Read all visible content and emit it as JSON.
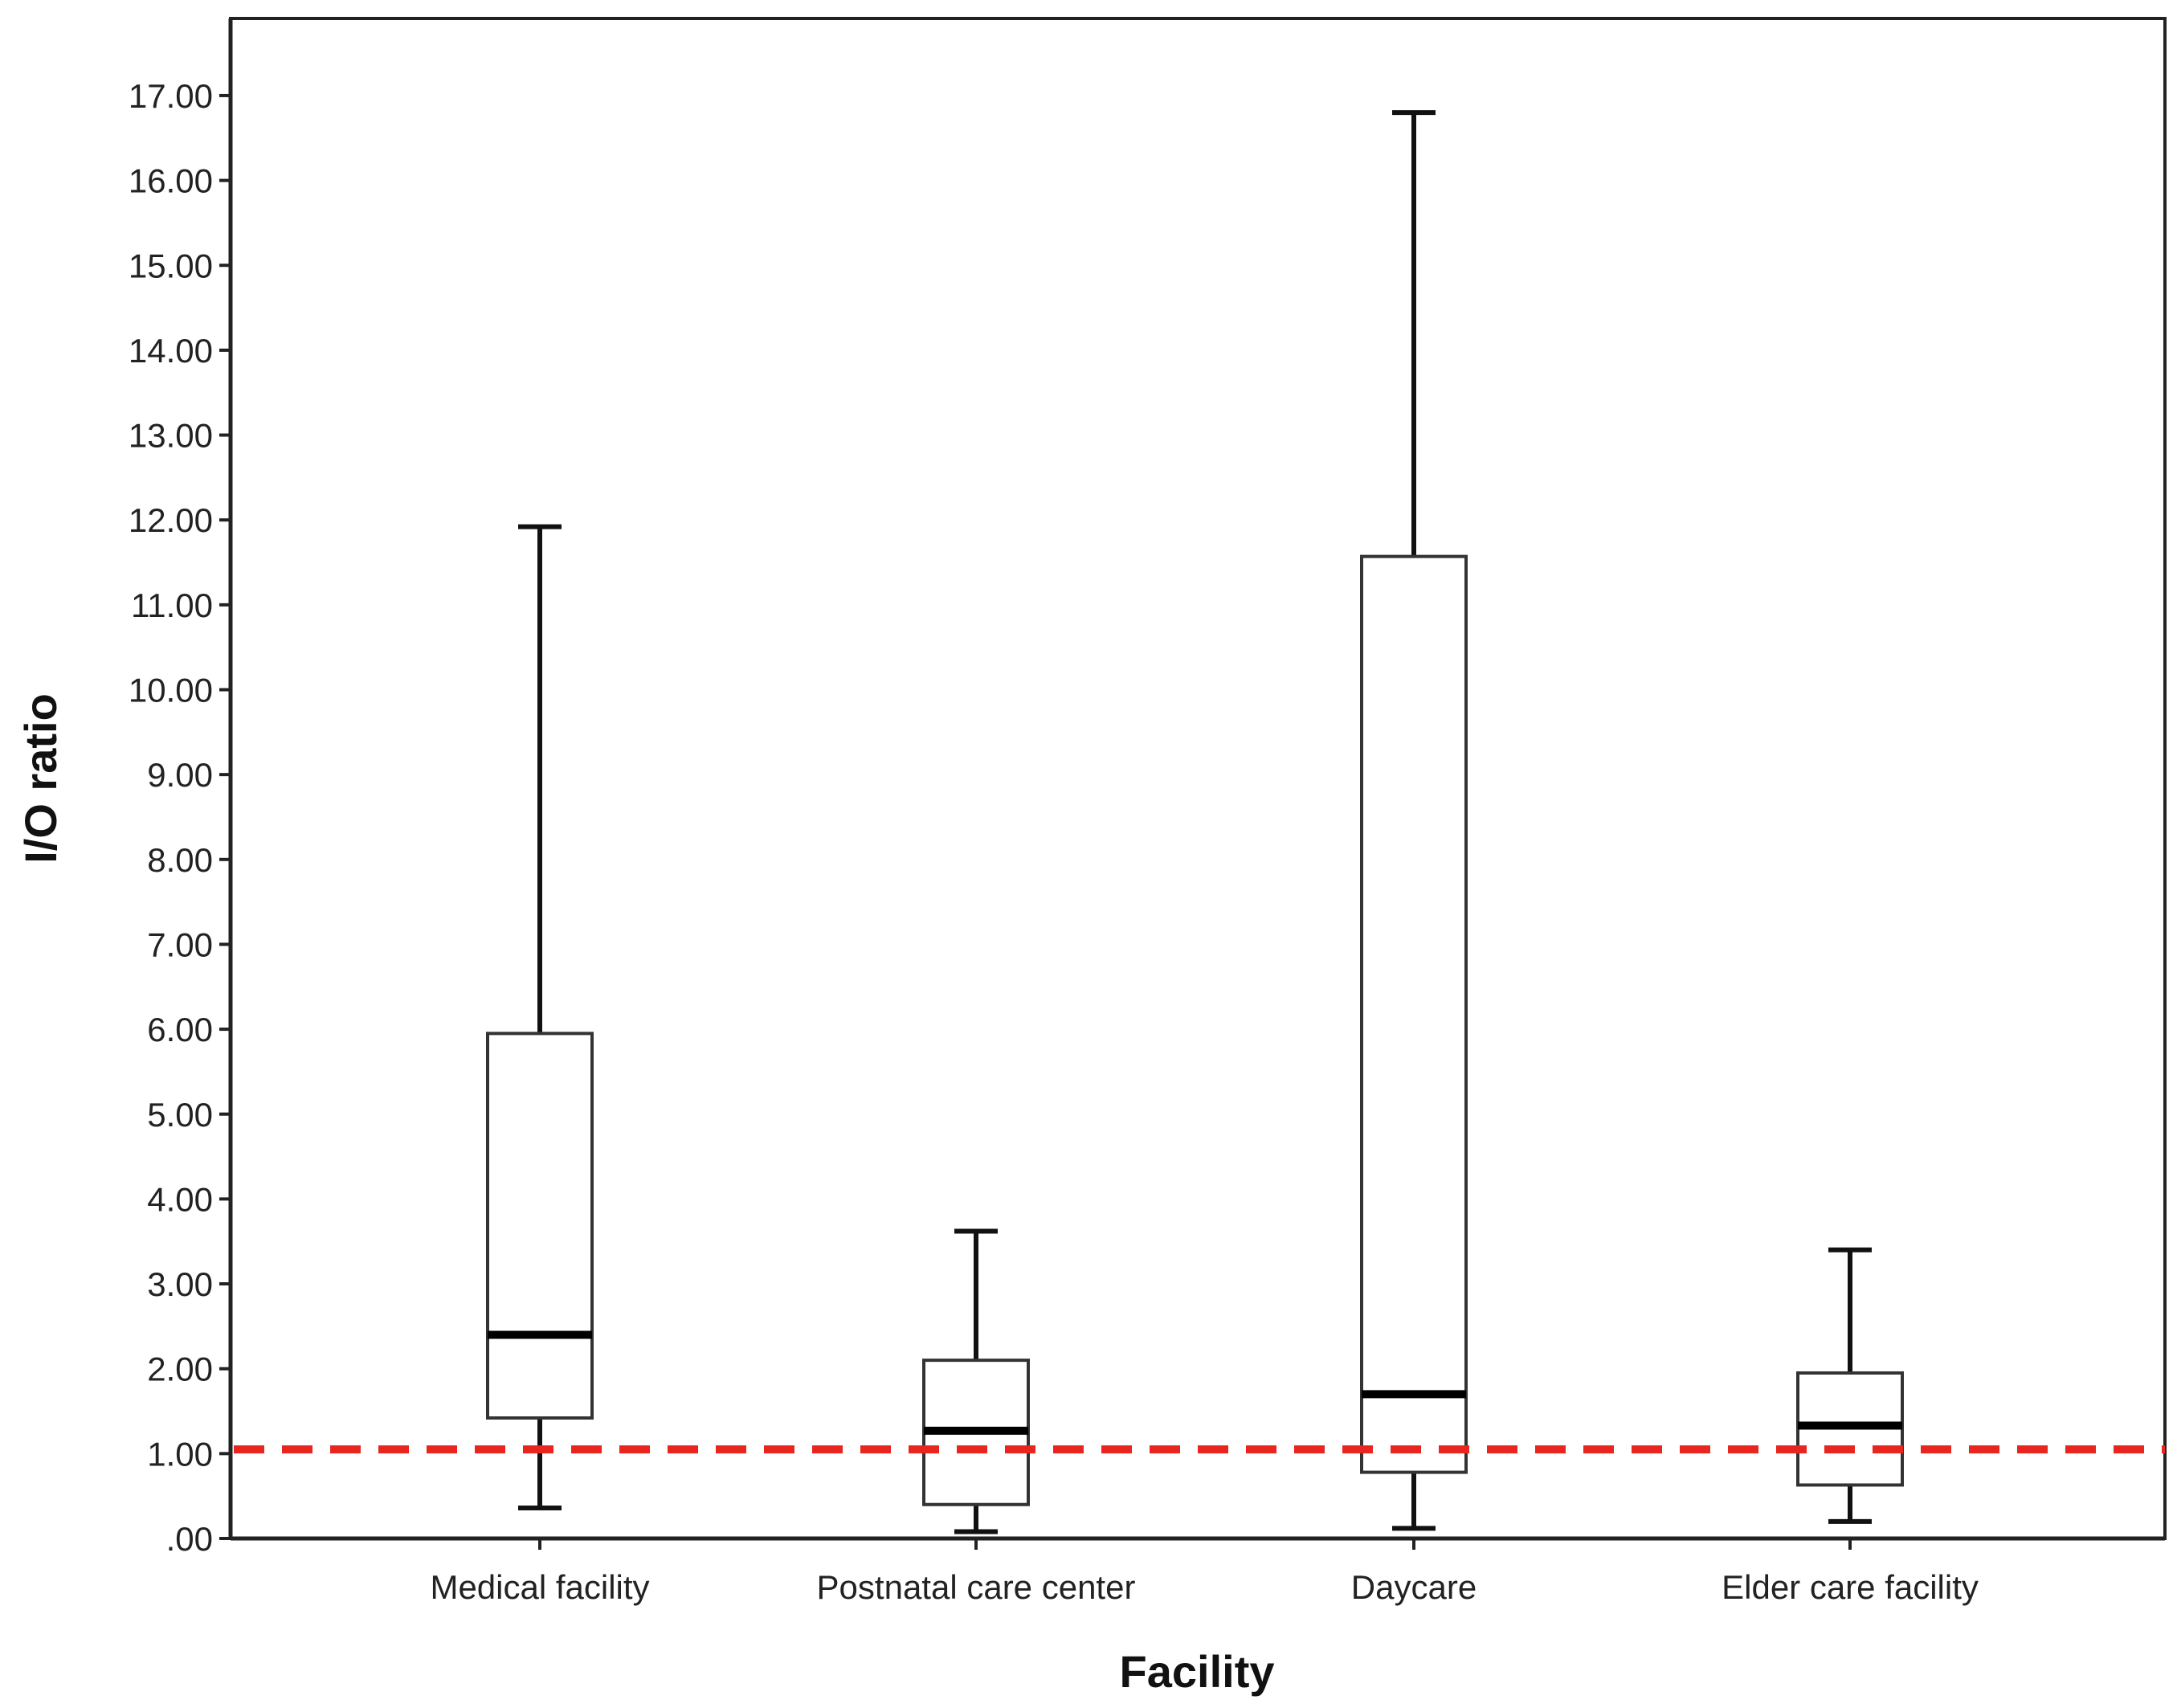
{
  "chart_data": {
    "type": "boxplot",
    "title": "",
    "xlabel": "Facility",
    "ylabel": "I/O ratio",
    "ylim": [
      0,
      17.7
    ],
    "yticks": [
      0,
      1,
      2,
      3,
      4,
      5,
      6,
      7,
      8,
      9,
      10,
      11,
      12,
      13,
      14,
      15,
      16,
      17
    ],
    "ytick_labels": [
      ".00",
      "1.00",
      "2.00",
      "3.00",
      "4.00",
      "5.00",
      "6.00",
      "7.00",
      "8.00",
      "9.00",
      "10.00",
      "11.00",
      "12.00",
      "13.00",
      "14.00",
      "15.00",
      "16.00",
      "17.00"
    ],
    "grid": false,
    "categories": [
      "Medical facility",
      "Postnatal care center",
      "Daycare",
      "Elder care facility"
    ],
    "boxes": [
      {
        "category": "Medical facility",
        "min": 0.36,
        "q1": 1.42,
        "median": 2.4,
        "q3": 5.95,
        "max": 11.92
      },
      {
        "category": "Postnatal care center",
        "min": 0.08,
        "q1": 0.4,
        "median": 1.27,
        "q3": 2.1,
        "max": 3.62
      },
      {
        "category": "Daycare",
        "min": 0.12,
        "q1": 0.78,
        "median": 1.7,
        "q3": 11.57,
        "max": 16.8
      },
      {
        "category": "Elder care facility",
        "min": 0.2,
        "q1": 0.63,
        "median": 1.33,
        "q3": 1.95,
        "max": 3.4
      }
    ],
    "reference_lines": [
      {
        "y": 1.05,
        "style": "dashed",
        "color": "#e8251f"
      }
    ]
  }
}
